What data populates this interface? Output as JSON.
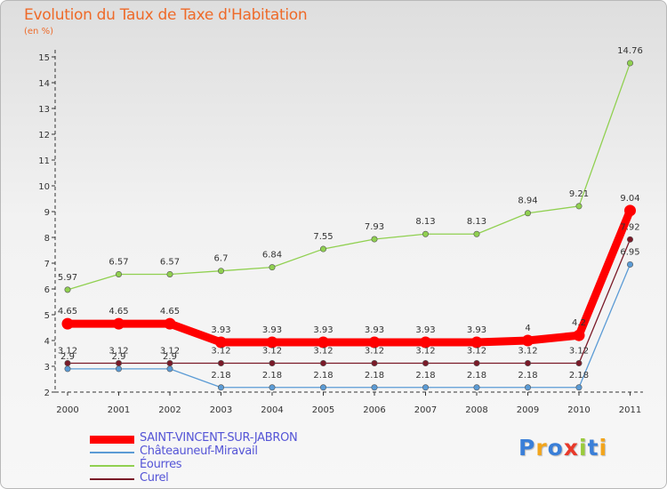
{
  "title": "Evolution du Taux de Taxe d'Habitation",
  "subtitle": "(en %)",
  "legend": [
    {
      "name": "SAINT-VINCENT-SUR-JABRON",
      "color": "#ff0000",
      "weight": "thick"
    },
    {
      "name": "Châteauneuf-Miravail",
      "color": "#5b9bd5",
      "weight": "thin"
    },
    {
      "name": "Éourres",
      "color": "#90d050",
      "weight": "thin"
    },
    {
      "name": "Curel",
      "color": "#7a1a28",
      "weight": "thin"
    }
  ],
  "logo": {
    "letters": [
      "P",
      "r",
      "o",
      "x",
      "i",
      "t",
      "i"
    ],
    "colors": [
      "#3a7fd8",
      "#f2a51c",
      "#3a7fd8",
      "#e8392a",
      "#9acb3c",
      "#3a7fd8",
      "#f2a51c"
    ]
  },
  "chart_data": {
    "type": "line",
    "title": "Evolution du Taux de Taxe d'Habitation",
    "subtitle": "(en %)",
    "x": [
      "2000",
      "2001",
      "2002",
      "2003",
      "2004",
      "2005",
      "2006",
      "2007",
      "2008",
      "2009",
      "2010",
      "2011"
    ],
    "yticks": [
      "2",
      "3",
      "4",
      "5",
      "6",
      "7",
      "8",
      "9",
      "10",
      "11",
      "12",
      "13",
      "14",
      "15"
    ],
    "ylim": [
      2,
      15
    ],
    "grid": false,
    "legend_position": "bottom-left",
    "series": [
      {
        "name": "Éourres",
        "color": "#90d050",
        "values": [
          5.97,
          6.57,
          6.57,
          6.7,
          6.84,
          7.55,
          7.93,
          8.13,
          8.13,
          8.94,
          9.21,
          14.76
        ],
        "labels": [
          "5.97",
          "6.57",
          "6.57",
          "6.7",
          "6.84",
          "7.55",
          "7.93",
          "8.13",
          "8.13",
          "8.94",
          "9.21",
          "14.76"
        ]
      },
      {
        "name": "Châteauneuf-Miravail",
        "color": "#5b9bd5",
        "values": [
          2.9,
          2.9,
          2.9,
          2.18,
          2.18,
          2.18,
          2.18,
          2.18,
          2.18,
          2.18,
          2.18,
          6.95
        ],
        "labels": [
          "2.9",
          "2.9",
          "2.9",
          "2.18",
          "2.18",
          "2.18",
          "2.18",
          "2.18",
          "2.18",
          "2.18",
          "2.18",
          "6.95"
        ]
      },
      {
        "name": "Curel",
        "color": "#7a1a28",
        "values": [
          3.12,
          3.12,
          3.12,
          3.12,
          3.12,
          3.12,
          3.12,
          3.12,
          3.12,
          3.12,
          3.12,
          7.92
        ],
        "labels": [
          "3.12",
          "3.12",
          "3.12",
          "3.12",
          "3.12",
          "3.12",
          "3.12",
          "3.12",
          "3.12",
          "3.12",
          "3.12",
          "7.92"
        ]
      },
      {
        "name": "SAINT-VINCENT-SUR-JABRON",
        "color": "#ff0000",
        "values": [
          4.65,
          4.65,
          4.65,
          3.93,
          3.93,
          3.93,
          3.93,
          3.93,
          3.93,
          4.0,
          4.2,
          9.04
        ],
        "labels": [
          "4.65",
          "4.65",
          "4.65",
          "3.93",
          "3.93",
          "3.93",
          "3.93",
          "3.93",
          "3.93",
          "4",
          "4.2",
          "9.04"
        ]
      }
    ]
  }
}
